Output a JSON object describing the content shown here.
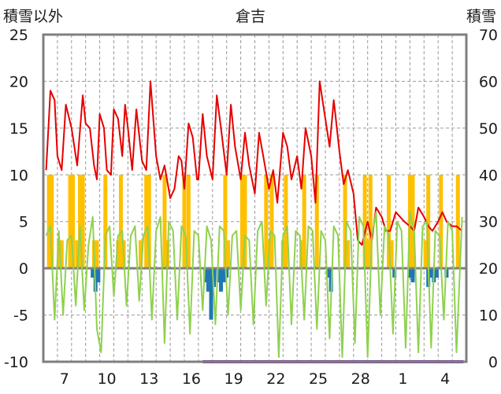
{
  "chart_data": {
    "type": "line",
    "title": "倉吉",
    "y_left_label": "積雪以外",
    "y_right_label": "積雪",
    "y_left": {
      "min": -10,
      "max": 25,
      "ticks": [
        "25",
        "20",
        "15",
        "10",
        "5",
        "0",
        "-5",
        "-10"
      ]
    },
    "y_right": {
      "min": 0,
      "max": 70,
      "ticks": [
        "70",
        "60",
        "50",
        "40",
        "30",
        "20",
        "10",
        "0"
      ]
    },
    "x_ticks": [
      "7",
      "10",
      "13",
      "16",
      "19",
      "22",
      "25",
      "28",
      "1",
      "4"
    ],
    "x_tick_days": [
      1.5,
      4.5,
      7.5,
      10.5,
      13.5,
      16.5,
      19.5,
      22.5,
      25.5,
      28.5
    ],
    "days_total": 30,
    "grid": true,
    "colors": {
      "temperature": "#e60000",
      "temperature_min": "#8fd14f",
      "sunshine": "#ffc000",
      "precipitation": "#1f77b4",
      "snow_depth": "#7030a0",
      "axis": "#7f7f7f"
    },
    "series": [
      {
        "key": "temperature",
        "x": [
          0.2,
          0.5,
          0.8,
          1.0,
          1.3,
          1.6,
          2.0,
          2.4,
          2.8,
          3.0,
          3.3,
          3.6,
          3.8,
          4.0,
          4.3,
          4.5,
          4.8,
          5.0,
          5.3,
          5.6,
          5.8,
          6.0,
          6.3,
          6.6,
          7.0,
          7.3,
          7.6,
          8.0,
          8.3,
          8.6,
          9.0,
          9.3,
          9.6,
          9.8,
          10.0,
          10.3,
          10.6,
          10.9,
          11.0,
          11.3,
          11.6,
          12.0,
          12.3,
          12.6,
          13.0,
          13.3,
          13.6,
          14.0,
          14.3,
          14.6,
          15.0,
          15.3,
          15.6,
          16.0,
          16.3,
          16.6,
          17.0,
          17.3,
          17.6,
          18.0,
          18.3,
          18.6,
          19.0,
          19.3,
          19.6,
          20.0,
          20.3,
          20.6,
          21.0,
          21.3,
          21.6,
          22.0,
          22.3,
          22.6,
          23.0,
          23.3,
          23.6,
          24.0,
          24.3,
          24.6,
          25.0,
          25.3,
          25.6,
          26.0,
          26.3,
          26.6,
          27.0,
          27.3,
          27.6,
          28.0,
          28.3,
          28.6,
          29.0,
          29.3,
          29.7
        ],
        "values": [
          10.5,
          19.0,
          18.0,
          12.0,
          10.5,
          17.5,
          15.0,
          11.0,
          18.5,
          15.5,
          15.0,
          11.0,
          9.5,
          16.5,
          15.0,
          10.5,
          10.0,
          17.0,
          16.0,
          12.0,
          17.5,
          15.0,
          10.5,
          17.0,
          11.5,
          10.5,
          20.0,
          12.0,
          9.5,
          11.0,
          7.5,
          8.5,
          12.0,
          11.5,
          8.5,
          15.5,
          14.0,
          9.5,
          9.5,
          16.5,
          12.0,
          9.5,
          18.5,
          15.0,
          10.0,
          17.5,
          13.0,
          9.5,
          14.5,
          11.0,
          8.0,
          14.5,
          12.0,
          8.5,
          10.5,
          7.0,
          14.5,
          13.0,
          9.5,
          12.0,
          8.5,
          15.0,
          12.0,
          7.0,
          20.0,
          16.0,
          13.0,
          18.0,
          12.5,
          9.0,
          10.5,
          8.0,
          3.0,
          2.5,
          5.0,
          3.0,
          6.5,
          5.5,
          4.0,
          4.0,
          6.0,
          5.5,
          5.0,
          4.5,
          4.0,
          6.5,
          5.5,
          4.5,
          4.0,
          5.0,
          6.0,
          5.0,
          4.5,
          4.5,
          4.0
        ]
      },
      {
        "key": "temperature_min",
        "x": [
          0.2,
          0.5,
          0.8,
          1.1,
          1.4,
          1.7,
          2.0,
          2.3,
          2.6,
          2.9,
          3.2,
          3.5,
          3.8,
          4.1,
          4.4,
          4.7,
          5.0,
          5.3,
          5.6,
          5.9,
          6.2,
          6.5,
          6.8,
          7.1,
          7.4,
          7.7,
          8.0,
          8.3,
          8.6,
          8.9,
          9.2,
          9.5,
          9.8,
          10.1,
          10.4,
          10.7,
          11.0,
          11.3,
          11.6,
          11.9,
          12.2,
          12.5,
          12.8,
          13.1,
          13.4,
          13.7,
          14.0,
          14.3,
          14.6,
          14.9,
          15.2,
          15.5,
          15.8,
          16.1,
          16.4,
          16.7,
          17.0,
          17.3,
          17.6,
          17.9,
          18.2,
          18.5,
          18.8,
          19.1,
          19.4,
          19.7,
          20.0,
          20.3,
          20.6,
          20.9,
          21.2,
          21.5,
          21.8,
          22.1,
          22.4,
          22.7,
          23.0,
          23.3,
          23.6,
          23.9,
          24.2,
          24.5,
          24.8,
          25.1,
          25.4,
          25.7,
          26.0,
          26.3,
          26.6,
          26.9,
          27.2,
          27.5,
          27.8,
          28.1,
          28.4,
          28.7,
          29.0,
          29.3,
          29.7
        ],
        "values": [
          3.5,
          4.5,
          -5.5,
          4.0,
          -5.0,
          3.0,
          3.5,
          -4.0,
          4.5,
          -4.5,
          2.5,
          5.5,
          -6.5,
          -9.0,
          3.5,
          4.5,
          -3.0,
          3.5,
          4.0,
          -4.0,
          3.5,
          4.5,
          -3.5,
          3.5,
          4.5,
          -5.5,
          4.0,
          5.5,
          -8.0,
          5.0,
          4.0,
          -5.5,
          4.5,
          3.5,
          -7.0,
          4.0,
          3.5,
          -4.5,
          4.5,
          3.0,
          -6.0,
          4.5,
          4.0,
          -5.0,
          3.5,
          4.0,
          -4.5,
          3.5,
          3.0,
          -6.0,
          4.0,
          5.0,
          -4.0,
          4.0,
          3.5,
          -9.5,
          3.5,
          4.5,
          -6.0,
          4.0,
          3.5,
          -5.5,
          4.5,
          4.0,
          -6.5,
          4.0,
          3.0,
          -7.5,
          4.5,
          3.5,
          -9.5,
          5.0,
          4.0,
          -8.0,
          5.5,
          4.5,
          -9.5,
          3.5,
          6.0,
          -5.0,
          4.5,
          3.5,
          -7.0,
          5.0,
          4.0,
          -8.5,
          6.0,
          4.0,
          -9.0,
          4.5,
          5.0,
          -8.5,
          4.0,
          3.5,
          -5.5,
          5.0,
          4.0,
          -9.0,
          5.5
        ]
      },
      {
        "key": "snow_depth",
        "x": [
          11.3,
          29.8
        ],
        "values": [
          0,
          0
        ]
      }
    ],
    "bars": [
      {
        "key": "sunshine",
        "x": [
          0.4,
          0.6,
          1.1,
          1.3,
          1.9,
          2.1,
          2.4,
          2.6,
          2.8,
          3.6,
          3.8,
          4.4,
          5.3,
          5.5,
          5.7,
          6.9,
          7.3,
          7.5,
          8.6,
          8.8,
          10.0,
          10.3,
          12.9,
          13.1,
          14.1,
          14.3,
          15.8,
          16.0,
          16.2,
          17.0,
          17.2,
          18.3,
          18.5,
          19.4,
          21.4,
          21.6,
          22.8,
          23.0,
          23.2,
          24.5,
          24.7,
          26.0,
          26.2,
          27.1,
          27.3,
          28.2,
          29.4
        ],
        "values": [
          10,
          10,
          3,
          3,
          10,
          10,
          3,
          10,
          10,
          3,
          3,
          10,
          3,
          10,
          3,
          3,
          10,
          10,
          10,
          3,
          10,
          10,
          10,
          3,
          10,
          10,
          10,
          3,
          10,
          3,
          10,
          3,
          10,
          10,
          10,
          3,
          10,
          3,
          10,
          10,
          3,
          10,
          10,
          3,
          10,
          10,
          10
        ]
      },
      {
        "key": "precipitation",
        "x": [
          3.5,
          3.7,
          3.9,
          11.5,
          11.7,
          11.9,
          12.1,
          12.4,
          12.6,
          12.8,
          13.0,
          20.2,
          20.4,
          24.9,
          26.0,
          26.2,
          27.3,
          27.5,
          27.7,
          27.9,
          28.6
        ],
        "values": [
          -1.0,
          -2.5,
          -1.5,
          -1.5,
          -2.5,
          -5.5,
          -2.0,
          -1.5,
          -2.5,
          -1.5,
          -1.0,
          -1.0,
          -2.5,
          -1.0,
          -1.0,
          -1.5,
          -2.0,
          -1.0,
          -1.5,
          -1.0,
          -1.0
        ]
      }
    ]
  }
}
